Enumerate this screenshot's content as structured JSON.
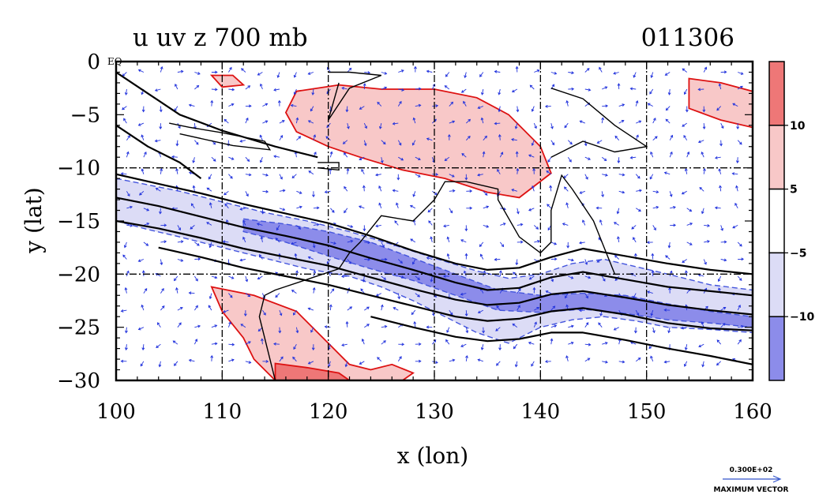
{
  "chart_data": {
    "type": "heatmap",
    "title_left": "u uv z 700 mb",
    "title_right": "011306",
    "xlabel": "x (lon)",
    "ylabel": "y (lat)",
    "xlim": [
      100,
      160
    ],
    "ylim": [
      -30,
      0
    ],
    "x_ticks": [
      {
        "value": 100,
        "label": "100"
      },
      {
        "value": 110,
        "label": "110"
      },
      {
        "value": 120,
        "label": "120"
      },
      {
        "value": 130,
        "label": "130"
      },
      {
        "value": 140,
        "label": "140"
      },
      {
        "value": 150,
        "label": "150"
      },
      {
        "value": 160,
        "label": "160"
      }
    ],
    "y_ticks": [
      {
        "value": 0,
        "label": "0"
      },
      {
        "value": -5,
        "label": "−5"
      },
      {
        "value": -10,
        "label": "−10"
      },
      {
        "value": -15,
        "label": "−15"
      },
      {
        "value": -20,
        "label": "−20"
      },
      {
        "value": -25,
        "label": "−25"
      },
      {
        "value": -30,
        "label": "−30"
      }
    ],
    "eq_label": "EQ",
    "grid": true,
    "grid_lines_x": [
      110,
      120,
      130,
      140,
      150
    ],
    "grid_lines_y": [
      -10,
      -20
    ],
    "colorbar": {
      "placement": "right",
      "bands": [
        {
          "min": 10,
          "max": 15,
          "color": "#ee7777"
        },
        {
          "min": 5,
          "max": 10,
          "color": "#f8c8c8"
        },
        {
          "min": -5,
          "max": 5,
          "color": "#ffffff"
        },
        {
          "min": -10,
          "max": -5,
          "color": "#dcdcf6"
        },
        {
          "min": -15,
          "max": -10,
          "color": "#8c8cea"
        }
      ],
      "ticks": [
        {
          "value": 10,
          "label": "10"
        },
        {
          "value": 5,
          "label": "5"
        },
        {
          "value": -5,
          "label": "−5"
        },
        {
          "value": -10,
          "label": "−10"
        }
      ]
    },
    "positive_regions": [
      {
        "level": 5,
        "points": [
          [
            117,
            -2.8
          ],
          [
            121,
            -2.2
          ],
          [
            125,
            -2.6
          ],
          [
            130,
            -2.6
          ],
          [
            134,
            -3.4
          ],
          [
            137,
            -5
          ],
          [
            140,
            -8
          ],
          [
            141,
            -10.5
          ],
          [
            138,
            -12.8
          ],
          [
            135,
            -12.3
          ],
          [
            131,
            -11
          ],
          [
            127,
            -10.2
          ],
          [
            123,
            -9
          ],
          [
            120,
            -8
          ],
          [
            117,
            -6.6
          ],
          [
            116,
            -4.8
          ]
        ]
      },
      {
        "level": 5,
        "points": [
          [
            109,
            -1.3
          ],
          [
            111,
            -1.3
          ],
          [
            112,
            -2.2
          ],
          [
            110,
            -2.4
          ]
        ]
      },
      {
        "level": 5,
        "points": [
          [
            154,
            -1.6
          ],
          [
            157,
            -2
          ],
          [
            160,
            -2.8
          ],
          [
            160,
            -6.2
          ],
          [
            157,
            -5.5
          ],
          [
            154,
            -4.4
          ]
        ]
      },
      {
        "level": 5,
        "points": [
          [
            109,
            -21.2
          ],
          [
            113,
            -22
          ],
          [
            117,
            -23.5
          ],
          [
            120,
            -26.5
          ],
          [
            122,
            -28.5
          ],
          [
            124,
            -29
          ],
          [
            126,
            -28.5
          ],
          [
            128,
            -29.3
          ],
          [
            127,
            -30
          ],
          [
            115,
            -30
          ],
          [
            113,
            -28
          ],
          [
            112,
            -26
          ],
          [
            110,
            -23.5
          ]
        ]
      },
      {
        "level": 10,
        "points": [
          [
            115,
            -28.4
          ],
          [
            118,
            -28.8
          ],
          [
            121,
            -29.3
          ],
          [
            122,
            -30
          ],
          [
            115,
            -30
          ]
        ]
      }
    ],
    "negative_bands": [
      {
        "level": -5,
        "upper": [
          [
            100,
            -11
          ],
          [
            103,
            -11.6
          ],
          [
            106,
            -12.2
          ],
          [
            110,
            -13.2
          ],
          [
            114,
            -14.2
          ],
          [
            118,
            -15
          ],
          [
            122,
            -16
          ],
          [
            126,
            -17.2
          ],
          [
            130,
            -18.5
          ],
          [
            134,
            -19.7
          ],
          [
            137,
            -20.4
          ],
          [
            140,
            -20
          ],
          [
            143,
            -19
          ],
          [
            146,
            -18.6
          ],
          [
            149,
            -19.3
          ],
          [
            152,
            -20
          ],
          [
            156,
            -21
          ],
          [
            160,
            -21.5
          ]
        ],
        "lower": [
          [
            160,
            -25.5
          ],
          [
            156,
            -25.2
          ],
          [
            152,
            -25
          ],
          [
            149,
            -24.4
          ],
          [
            146,
            -24
          ],
          [
            143,
            -24.3
          ],
          [
            140,
            -25
          ],
          [
            137,
            -26.5
          ],
          [
            134,
            -25.5
          ],
          [
            131,
            -24
          ],
          [
            128,
            -22.5
          ],
          [
            125,
            -21.2
          ],
          [
            122,
            -20.2
          ],
          [
            118,
            -19.5
          ],
          [
            114,
            -18.5
          ],
          [
            110,
            -17.5
          ],
          [
            106,
            -16.5
          ],
          [
            103,
            -15.8
          ],
          [
            100,
            -15
          ]
        ]
      },
      {
        "level": -10,
        "upper": [
          [
            112,
            -14.8
          ],
          [
            116,
            -15.3
          ],
          [
            120,
            -16
          ],
          [
            124,
            -17
          ],
          [
            128,
            -18.5
          ],
          [
            132,
            -20
          ],
          [
            136,
            -21.5
          ],
          [
            140,
            -22
          ],
          [
            144,
            -21.8
          ],
          [
            148,
            -22
          ],
          [
            152,
            -22.8
          ],
          [
            156,
            -23.5
          ],
          [
            160,
            -24
          ]
        ],
        "lower": [
          [
            160,
            -25
          ],
          [
            156,
            -24.6
          ],
          [
            152,
            -24.3
          ],
          [
            148,
            -23.7
          ],
          [
            144,
            -23.3
          ],
          [
            140,
            -23.6
          ],
          [
            136,
            -23.4
          ],
          [
            132,
            -22
          ],
          [
            128,
            -20.6
          ],
          [
            124,
            -19.5
          ],
          [
            120,
            -18.3
          ],
          [
            116,
            -17
          ],
          [
            112,
            -16
          ]
        ]
      }
    ],
    "contours": [
      {
        "points": [
          [
            100,
            -10.6
          ],
          [
            104,
            -11.5
          ],
          [
            108,
            -12.4
          ],
          [
            112,
            -13.4
          ],
          [
            116,
            -14.3
          ],
          [
            120,
            -15.2
          ],
          [
            124,
            -16.4
          ],
          [
            128,
            -17.8
          ],
          [
            132,
            -19
          ],
          [
            135,
            -19.6
          ],
          [
            138,
            -19.4
          ],
          [
            141,
            -18.4
          ],
          [
            144,
            -17.6
          ],
          [
            148,
            -18.3
          ],
          [
            152,
            -19
          ],
          [
            156,
            -19.6
          ],
          [
            160,
            -20
          ]
        ]
      },
      {
        "points": [
          [
            100,
            -12.8
          ],
          [
            104,
            -13.6
          ],
          [
            108,
            -14.6
          ],
          [
            112,
            -15.6
          ],
          [
            116,
            -16.4
          ],
          [
            120,
            -17.3
          ],
          [
            124,
            -18.5
          ],
          [
            128,
            -19.6
          ],
          [
            132,
            -20.8
          ],
          [
            135,
            -21.5
          ],
          [
            138,
            -21.3
          ],
          [
            141,
            -20.3
          ],
          [
            144,
            -19.8
          ],
          [
            148,
            -20.5
          ],
          [
            152,
            -21.2
          ],
          [
            156,
            -21.6
          ],
          [
            160,
            -22
          ]
        ]
      },
      {
        "points": [
          [
            100,
            -15
          ],
          [
            104,
            -15.7
          ],
          [
            108,
            -16.6
          ],
          [
            112,
            -17.6
          ],
          [
            116,
            -18.4
          ],
          [
            120,
            -19.2
          ],
          [
            124,
            -20.3
          ],
          [
            128,
            -21.4
          ],
          [
            132,
            -22.4
          ],
          [
            135,
            -22.9
          ],
          [
            138,
            -22.7
          ],
          [
            141,
            -21.9
          ],
          [
            144,
            -21.6
          ],
          [
            148,
            -22.2
          ],
          [
            152,
            -22.9
          ],
          [
            156,
            -23.4
          ],
          [
            160,
            -23.8
          ]
        ]
      },
      {
        "points": [
          [
            104,
            -17.5
          ],
          [
            108,
            -18.4
          ],
          [
            112,
            -19.4
          ],
          [
            116,
            -20.2
          ],
          [
            120,
            -21
          ],
          [
            124,
            -22
          ],
          [
            128,
            -23
          ],
          [
            132,
            -24
          ],
          [
            135,
            -24.4
          ],
          [
            138,
            -24.2
          ],
          [
            141,
            -23.5
          ],
          [
            144,
            -23.2
          ],
          [
            148,
            -23.8
          ],
          [
            152,
            -24.6
          ],
          [
            156,
            -25.1
          ],
          [
            160,
            -25.3
          ]
        ]
      },
      {
        "points": [
          [
            124,
            -24
          ],
          [
            128,
            -25
          ],
          [
            132,
            -25.9
          ],
          [
            135,
            -26.3
          ],
          [
            138,
            -26.1
          ],
          [
            141,
            -25.5
          ],
          [
            144,
            -25.5
          ],
          [
            148,
            -26.2
          ],
          [
            152,
            -27
          ],
          [
            156,
            -27.7
          ],
          [
            160,
            -28.5
          ]
        ]
      },
      {
        "points": [
          [
            100,
            -6
          ],
          [
            103,
            -8
          ],
          [
            106,
            -9.5
          ],
          [
            108,
            -11
          ]
        ]
      },
      {
        "points": [
          [
            100,
            -1
          ],
          [
            103,
            -3
          ],
          [
            106,
            -5
          ],
          [
            110,
            -6.5
          ],
          [
            115,
            -8
          ],
          [
            119,
            -9
          ]
        ]
      }
    ],
    "coastlines": [
      {
        "points": [
          [
            147,
            -20
          ],
          [
            145,
            -15
          ],
          [
            143,
            -12
          ],
          [
            142,
            -10.7
          ],
          [
            141,
            -14
          ],
          [
            141,
            -17
          ],
          [
            140,
            -18
          ],
          [
            138,
            -16.5
          ],
          [
            136,
            -13
          ],
          [
            136,
            -12
          ],
          [
            133,
            -11.3
          ],
          [
            131,
            -11.3
          ],
          [
            130,
            -13
          ],
          [
            128,
            -15
          ],
          [
            125,
            -14.5
          ],
          [
            123,
            -17
          ],
          [
            122,
            -18
          ],
          [
            121,
            -19.5
          ],
          [
            118,
            -20.5
          ],
          [
            115,
            -21.5
          ],
          [
            114,
            -22
          ],
          [
            113.5,
            -24
          ],
          [
            114,
            -26
          ],
          [
            115,
            -30
          ]
        ]
      },
      {
        "points": [
          [
            119,
            -9.5
          ],
          [
            121,
            -9.5
          ],
          [
            121,
            -10.2
          ],
          [
            119,
            -10
          ]
        ]
      },
      {
        "points": [
          [
            141,
            -2.5
          ],
          [
            144,
            -3.5
          ],
          [
            147,
            -6
          ],
          [
            150,
            -8
          ],
          [
            147,
            -8.5
          ],
          [
            144,
            -7.5
          ],
          [
            141,
            -9
          ]
        ]
      },
      {
        "points": [
          [
            105,
            -5.8
          ],
          [
            107,
            -6.2
          ],
          [
            110,
            -6.7
          ],
          [
            114,
            -7.5
          ],
          [
            114.5,
            -8.3
          ],
          [
            111,
            -7.9
          ],
          [
            106,
            -6.8
          ]
        ]
      },
      {
        "points": [
          [
            120,
            -1
          ],
          [
            122,
            -1
          ],
          [
            125,
            -1.3
          ],
          [
            122,
            -2.5
          ],
          [
            120,
            -5.5
          ],
          [
            121,
            -2
          ]
        ]
      }
    ],
    "vector_reference": {
      "magnitude_label": "0.300E+02",
      "caption": "MAXIMUM VECTOR"
    }
  }
}
